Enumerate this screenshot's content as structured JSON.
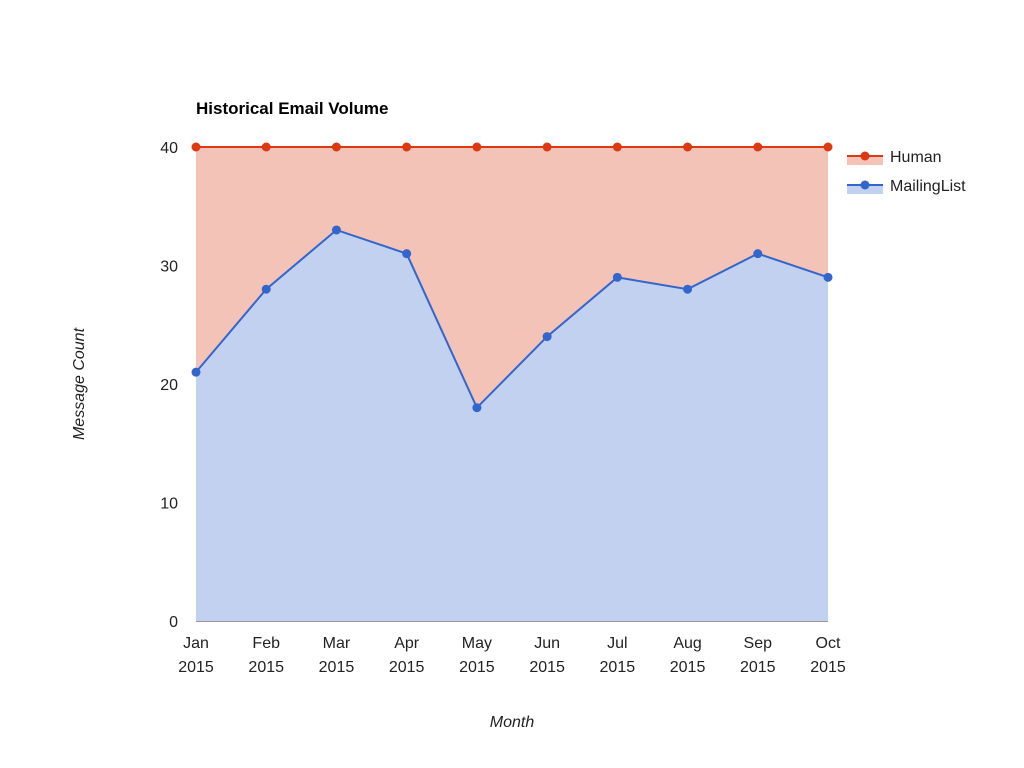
{
  "chart_data": {
    "type": "area",
    "stacked": true,
    "title": "Historical Email Volume",
    "xlabel": "Month",
    "ylabel": "Message Count",
    "x_month": [
      "Jan",
      "Feb",
      "Mar",
      "Apr",
      "May",
      "Jun",
      "Jul",
      "Aug",
      "Sep",
      "Oct"
    ],
    "x_year": [
      "2015",
      "2015",
      "2015",
      "2015",
      "2015",
      "2015",
      "2015",
      "2015",
      "2015",
      "2015"
    ],
    "ylim": [
      0,
      40
    ],
    "yticks": [
      "0",
      "10",
      "20",
      "30",
      "40"
    ],
    "grid": true,
    "legend_position": "right",
    "series": [
      {
        "name": "Human",
        "color": "#dc3912",
        "fill": "#f4c3b8",
        "values": [
          19,
          12,
          7,
          9,
          22,
          16,
          11,
          12,
          9,
          11
        ]
      },
      {
        "name": "MailingList",
        "color": "#3366cc",
        "fill": "#c2d1f0",
        "values": [
          21,
          28,
          33,
          31,
          18,
          24,
          29,
          28,
          31,
          29
        ]
      }
    ]
  }
}
